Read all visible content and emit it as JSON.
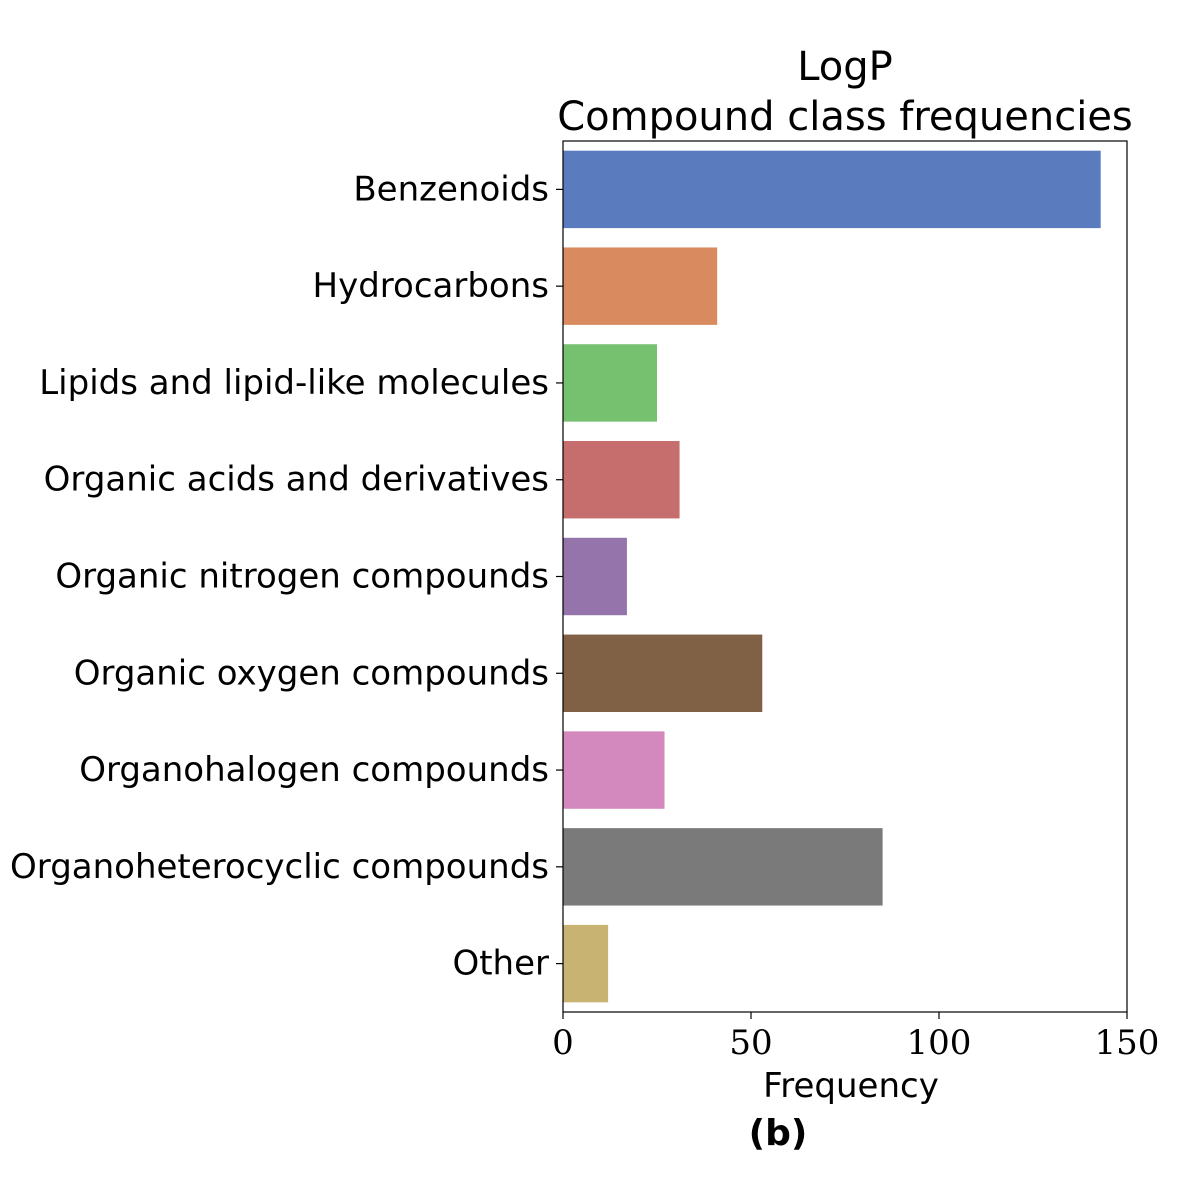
{
  "chart_data": {
    "type": "bar",
    "orientation": "horizontal",
    "title_lines": [
      "LogP",
      "Compound class frequencies"
    ],
    "xlabel": "Frequency",
    "ylabel": "",
    "xlim": [
      0,
      150
    ],
    "x_ticks": [
      0,
      50,
      100,
      150
    ],
    "x_tick_labels": [
      "0",
      "50",
      "100",
      "150"
    ],
    "grid": false,
    "categories": [
      "Benzenoids",
      "Hydrocarbons",
      "Lipids and lipid-like molecules",
      "Organic acids and derivatives",
      "Organic nitrogen compounds",
      "Organic oxygen compounds",
      "Organohalogen compounds",
      "Organoheterocyclic compounds",
      "Other"
    ],
    "values": [
      143,
      41,
      25,
      31,
      17,
      53,
      27,
      85,
      12
    ],
    "colors": [
      "#5a7cbf",
      "#d98a5f",
      "#76c170",
      "#c56e6d",
      "#9574ab",
      "#806146",
      "#d389bd",
      "#7a7a7a",
      "#c8b372"
    ]
  },
  "panel_label": "(b)"
}
